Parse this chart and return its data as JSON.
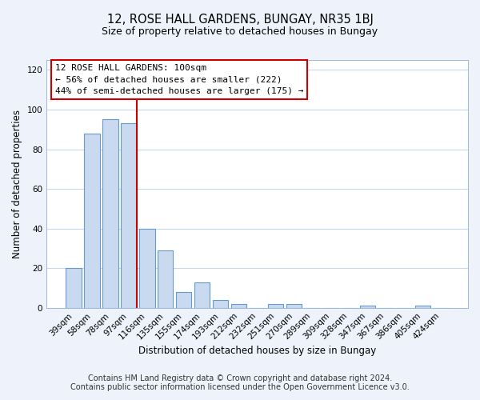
{
  "title": "12, ROSE HALL GARDENS, BUNGAY, NR35 1BJ",
  "subtitle": "Size of property relative to detached houses in Bungay",
  "xlabel": "Distribution of detached houses by size in Bungay",
  "ylabel": "Number of detached properties",
  "bar_labels": [
    "39sqm",
    "58sqm",
    "78sqm",
    "97sqm",
    "116sqm",
    "135sqm",
    "155sqm",
    "174sqm",
    "193sqm",
    "212sqm",
    "232sqm",
    "251sqm",
    "270sqm",
    "289sqm",
    "309sqm",
    "328sqm",
    "347sqm",
    "367sqm",
    "386sqm",
    "405sqm",
    "424sqm"
  ],
  "bar_values": [
    20,
    88,
    95,
    93,
    40,
    29,
    8,
    13,
    4,
    2,
    0,
    2,
    2,
    0,
    0,
    0,
    1,
    0,
    0,
    1,
    0
  ],
  "bar_color": "#c9daf0",
  "bar_edge_color": "#6699cc",
  "vline_color": "#cc0000",
  "annotation_box_color": "#ffffff",
  "annotation_box_edge_color": "#cc0000",
  "annotation_line1": "12 ROSE HALL GARDENS: 100sqm",
  "annotation_line2": "← 56% of detached houses are smaller (222)",
  "annotation_line3": "44% of semi-detached houses are larger (175) →",
  "ylim": [
    0,
    125
  ],
  "yticks": [
    0,
    20,
    40,
    60,
    80,
    100,
    120
  ],
  "footer_line1": "Contains HM Land Registry data © Crown copyright and database right 2024.",
  "footer_line2": "Contains public sector information licensed under the Open Government Licence v3.0.",
  "background_color": "#eef2fa",
  "plot_background_color": "#ffffff",
  "grid_color": "#c8d8ec",
  "title_fontsize": 10.5,
  "subtitle_fontsize": 9,
  "xlabel_fontsize": 8.5,
  "ylabel_fontsize": 8.5,
  "tick_fontsize": 7.5,
  "footer_fontsize": 7,
  "annotation_fontsize": 8
}
